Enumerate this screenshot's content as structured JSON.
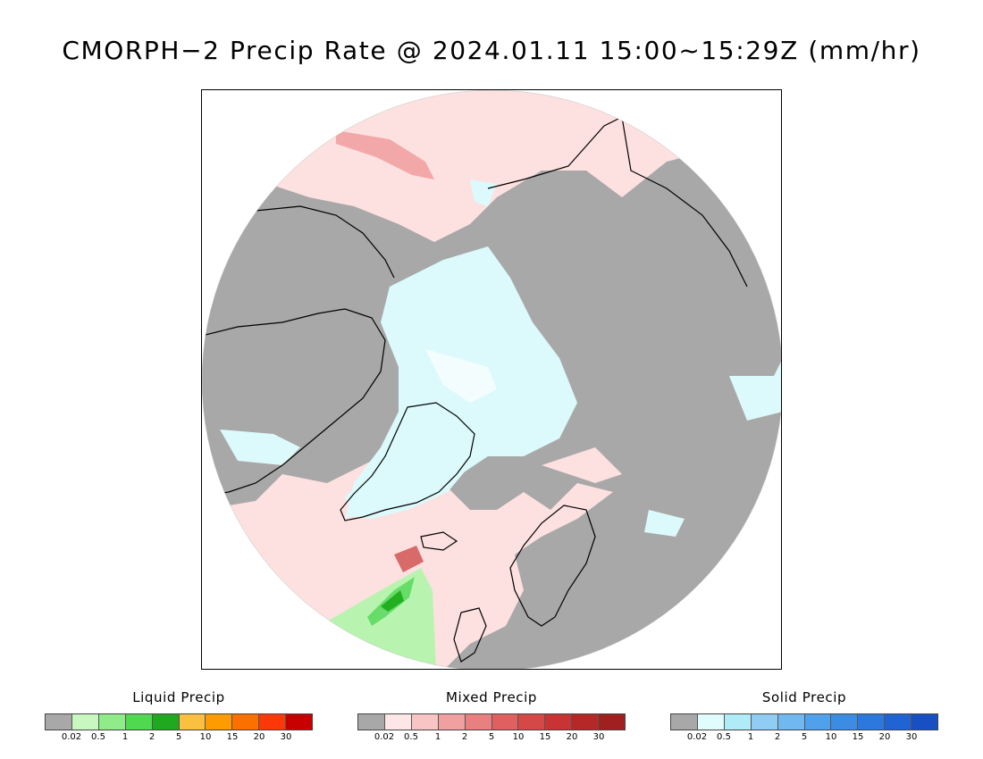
{
  "title": "CMORPH−2 Precip Rate @ 2024.01.11 15:00~15:29Z (mm/hr)",
  "map": {
    "projection": "polar stereographic (north)",
    "colors": {
      "no_precip": "#a8a8a8",
      "mixed_light": "#fde0e0",
      "mixed_mid": "#f2a8a8",
      "mixed_heavy": "#d86a6a",
      "solid_light": "#dcfafc",
      "liquid_light": "#b8f4b0",
      "liquid_mid": "#68dc68",
      "liquid_heavy": "#22b022",
      "coast": "#000000"
    }
  },
  "legends": [
    {
      "title": "Liquid Precip",
      "colors": [
        "#a8a8a8",
        "#c8f8c0",
        "#90ec88",
        "#50d850",
        "#20a820",
        "#fcc040",
        "#fc9c00",
        "#fc7000",
        "#fc3808",
        "#c80000"
      ],
      "ticks": [
        "0.02",
        "0.5",
        "1",
        "2",
        "5",
        "10",
        "15",
        "20",
        "30"
      ]
    },
    {
      "title": "Mixed Precip",
      "colors": [
        "#a8a8a8",
        "#fde6e6",
        "#f8c4c4",
        "#f0a0a0",
        "#e88080",
        "#e06060",
        "#d44848",
        "#c83434",
        "#b42828",
        "#a02020"
      ],
      "ticks": [
        "0.02",
        "0.5",
        "1",
        "2",
        "5",
        "10",
        "15",
        "20",
        "30"
      ]
    },
    {
      "title": "Solid Precip",
      "colors": [
        "#a8a8a8",
        "#e0fcfc",
        "#b0ecf8",
        "#90ccf4",
        "#70b8f0",
        "#50a0ec",
        "#3c8ce4",
        "#2c78dc",
        "#2064d4",
        "#1850c4"
      ],
      "ticks": [
        "0.02",
        "0.5",
        "1",
        "2",
        "5",
        "10",
        "15",
        "20",
        "30"
      ]
    }
  ]
}
